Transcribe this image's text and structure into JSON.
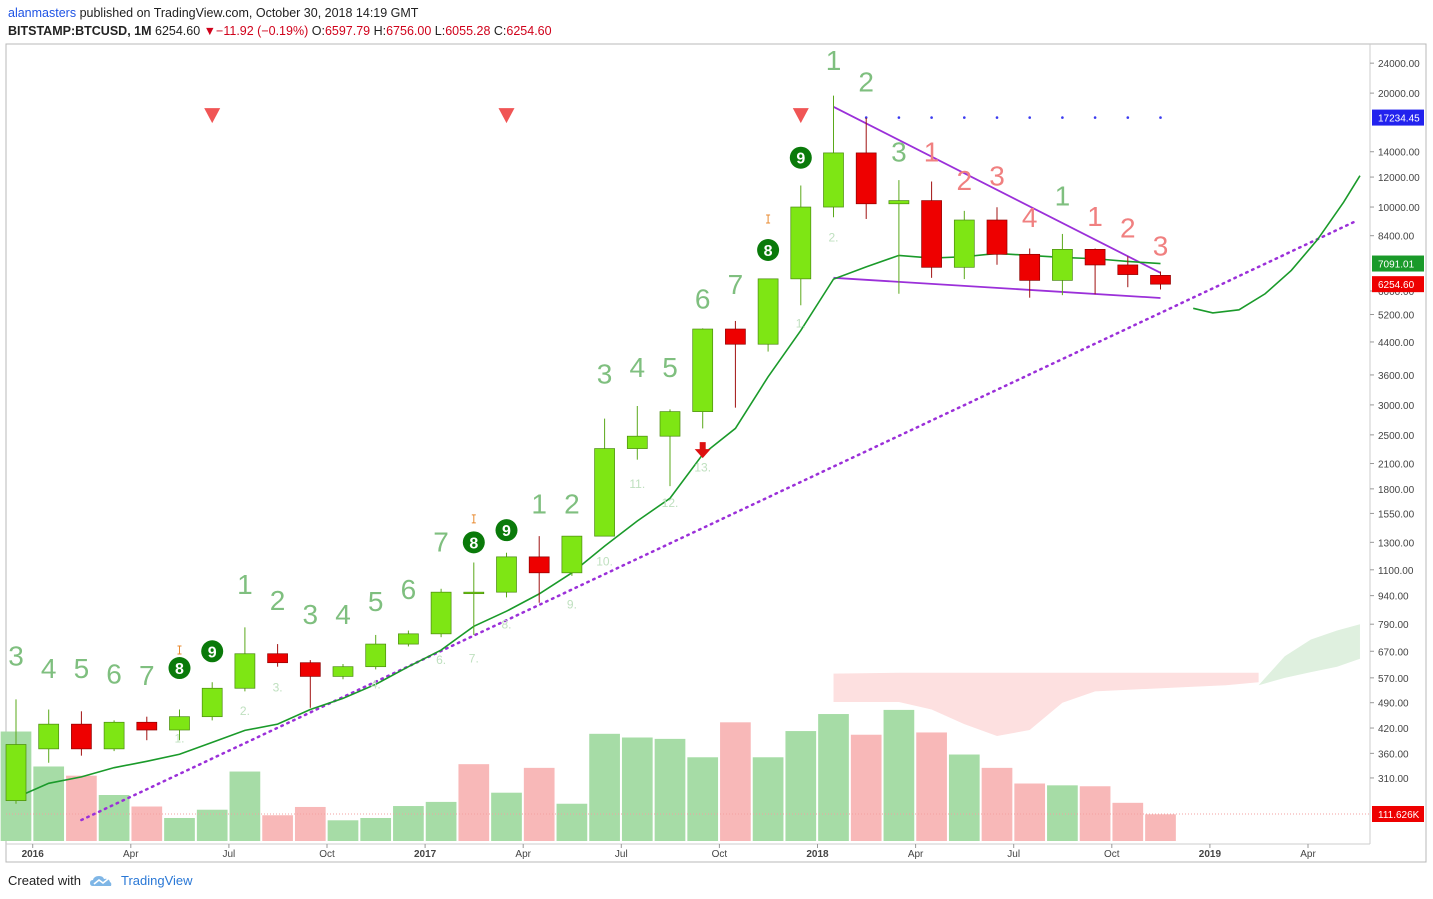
{
  "header": {
    "author": "alanmasters",
    "published_text": "published on TradingView.com, October 30, 2018 14:19 GMT",
    "symbol": "BITSTAMP:BTCUSD, 1M",
    "last": "6254.60",
    "change_arrow": "▼",
    "change": "−11.92 (−0.19%)",
    "o_label": "O:",
    "o": "6597.79",
    "h_label": "H:",
    "h": "6756.00",
    "l_label": "L:",
    "l": "6055.28",
    "c_label": "C:",
    "c": "6254.60"
  },
  "footer": {
    "created_with": "Created with",
    "brand": "TradingView",
    "logo_icon": "tradingview-cloud-icon"
  },
  "colors": {
    "up": "#7ee614",
    "down": "#ee0000",
    "ma": "#1a9a2a",
    "trend": "#9b30d9",
    "td_up": "#7fbf7f",
    "td_down": "#f08080",
    "badge": "#0a7a0a",
    "vol_up": "#a6dca6",
    "vol_down": "#f8b8b8",
    "sell_marker": "#f05555"
  },
  "chart_data": {
    "type": "candlestick",
    "interval": "1M",
    "scale": "log",
    "ylim": [
      240,
      26000
    ],
    "y_ticks": [
      "310.00",
      "360.00",
      "420.00",
      "490.00",
      "570.00",
      "670.00",
      "790.00",
      "940.00",
      "1100.00",
      "1300.00",
      "1550.00",
      "1800.00",
      "2100.00",
      "2500.00",
      "3000.00",
      "3600.00",
      "4400.00",
      "5200.00",
      "6000.00",
      "8400.00",
      "10000.00",
      "12000.00",
      "14000.00",
      "20000.00",
      "24000.00"
    ],
    "x_tick_labels": [
      {
        "label": "2016",
        "i": 1,
        "bold": true
      },
      {
        "label": "Apr",
        "i": 4
      },
      {
        "label": "Jul",
        "i": 7
      },
      {
        "label": "Oct",
        "i": 10
      },
      {
        "label": "2017",
        "i": 13,
        "bold": true
      },
      {
        "label": "Apr",
        "i": 16
      },
      {
        "label": "Jul",
        "i": 19
      },
      {
        "label": "Oct",
        "i": 22
      },
      {
        "label": "2018",
        "i": 25,
        "bold": true
      },
      {
        "label": "Apr",
        "i": 28
      },
      {
        "label": "Jul",
        "i": 31
      },
      {
        "label": "Oct",
        "i": 34
      },
      {
        "label": "2019",
        "i": 37,
        "bold": true
      },
      {
        "label": "Apr",
        "i": 40
      }
    ],
    "candles": [
      {
        "o": 270,
        "h": 500,
        "l": 265,
        "c": 380
      },
      {
        "o": 370,
        "h": 470,
        "l": 340,
        "c": 430
      },
      {
        "o": 430,
        "h": 465,
        "l": 355,
        "c": 370
      },
      {
        "o": 370,
        "h": 440,
        "l": 365,
        "c": 435
      },
      {
        "o": 435,
        "h": 450,
        "l": 390,
        "c": 415
      },
      {
        "o": 415,
        "h": 470,
        "l": 390,
        "c": 450
      },
      {
        "o": 450,
        "h": 555,
        "l": 440,
        "c": 535
      },
      {
        "o": 535,
        "h": 775,
        "l": 525,
        "c": 660
      },
      {
        "o": 660,
        "h": 700,
        "l": 610,
        "c": 625
      },
      {
        "o": 625,
        "h": 635,
        "l": 475,
        "c": 575
      },
      {
        "o": 575,
        "h": 620,
        "l": 565,
        "c": 610
      },
      {
        "o": 610,
        "h": 740,
        "l": 600,
        "c": 700
      },
      {
        "o": 700,
        "h": 760,
        "l": 690,
        "c": 745
      },
      {
        "o": 745,
        "h": 980,
        "l": 730,
        "c": 960
      },
      {
        "o": 960,
        "h": 1150,
        "l": 740,
        "c": 960
      },
      {
        "o": 960,
        "h": 1220,
        "l": 930,
        "c": 1190
      },
      {
        "o": 1190,
        "h": 1350,
        "l": 900,
        "c": 1080
      },
      {
        "o": 1080,
        "h": 1350,
        "l": 1060,
        "c": 1350
      },
      {
        "o": 1350,
        "h": 2760,
        "l": 1350,
        "c": 2300
      },
      {
        "o": 2300,
        "h": 2980,
        "l": 2150,
        "c": 2480
      },
      {
        "o": 2480,
        "h": 2920,
        "l": 1830,
        "c": 2880
      },
      {
        "o": 2880,
        "h": 4780,
        "l": 2600,
        "c": 4760
      },
      {
        "o": 4760,
        "h": 5000,
        "l": 2950,
        "c": 4340
      },
      {
        "o": 4340,
        "h": 6470,
        "l": 4150,
        "c": 6460
      },
      {
        "o": 6460,
        "h": 11400,
        "l": 5500,
        "c": 10000
      },
      {
        "o": 10000,
        "h": 19700,
        "l": 9400,
        "c": 13900
      },
      {
        "o": 13900,
        "h": 17200,
        "l": 9300,
        "c": 10200
      },
      {
        "o": 10200,
        "h": 11780,
        "l": 5900,
        "c": 10400
      },
      {
        "o": 10400,
        "h": 11680,
        "l": 6500,
        "c": 6930
      },
      {
        "o": 6930,
        "h": 9770,
        "l": 6450,
        "c": 9240
      },
      {
        "o": 9240,
        "h": 9990,
        "l": 7040,
        "c": 7500
      },
      {
        "o": 7500,
        "h": 7770,
        "l": 5760,
        "c": 6400
      },
      {
        "o": 6400,
        "h": 8490,
        "l": 5850,
        "c": 7730
      },
      {
        "o": 7730,
        "h": 7770,
        "l": 5880,
        "c": 7030
      },
      {
        "o": 7030,
        "h": 7410,
        "l": 6140,
        "c": 6630
      },
      {
        "o": 6597.79,
        "h": 6756,
        "l": 6055.28,
        "c": 6254.6
      }
    ],
    "volume": [
      {
        "v": 238,
        "up": true
      },
      {
        "v": 162,
        "up": true
      },
      {
        "v": 142,
        "up": false
      },
      {
        "v": 100,
        "up": true
      },
      {
        "v": 75,
        "up": false
      },
      {
        "v": 50,
        "up": true
      },
      {
        "v": 68,
        "up": true
      },
      {
        "v": 151,
        "up": true
      },
      {
        "v": 56,
        "up": false
      },
      {
        "v": 74,
        "up": false
      },
      {
        "v": 45,
        "up": true
      },
      {
        "v": 50,
        "up": true
      },
      {
        "v": 76,
        "up": true
      },
      {
        "v": 85,
        "up": true
      },
      {
        "v": 167,
        "up": false
      },
      {
        "v": 105,
        "up": true
      },
      {
        "v": 159,
        "up": false
      },
      {
        "v": 81,
        "up": true
      },
      {
        "v": 233,
        "up": true
      },
      {
        "v": 225,
        "up": true
      },
      {
        "v": 222,
        "up": true
      },
      {
        "v": 182,
        "up": true
      },
      {
        "v": 258,
        "up": false
      },
      {
        "v": 182,
        "up": true
      },
      {
        "v": 239,
        "up": true
      },
      {
        "v": 276,
        "up": true
      },
      {
        "v": 231,
        "up": false
      },
      {
        "v": 285,
        "up": true
      },
      {
        "v": 236,
        "up": false
      },
      {
        "v": 188,
        "up": true
      },
      {
        "v": 159,
        "up": false
      },
      {
        "v": 125,
        "up": false
      },
      {
        "v": 121,
        "up": true
      },
      {
        "v": 119,
        "up": false
      },
      {
        "v": 83,
        "up": false
      },
      {
        "v": 58,
        "up": false
      }
    ],
    "ma": [
      {
        "i": 0,
        "v": 275
      },
      {
        "i": 1,
        "v": 300
      },
      {
        "i": 2,
        "v": 312
      },
      {
        "i": 3,
        "v": 330
      },
      {
        "i": 4,
        "v": 343
      },
      {
        "i": 5,
        "v": 358
      },
      {
        "i": 6,
        "v": 385
      },
      {
        "i": 7,
        "v": 414
      },
      {
        "i": 8,
        "v": 430
      },
      {
        "i": 9,
        "v": 470
      },
      {
        "i": 10,
        "v": 503
      },
      {
        "i": 11,
        "v": 548
      },
      {
        "i": 12,
        "v": 610
      },
      {
        "i": 13,
        "v": 675
      },
      {
        "i": 14,
        "v": 780
      },
      {
        "i": 15,
        "v": 855
      },
      {
        "i": 16,
        "v": 950
      },
      {
        "i": 17,
        "v": 1080
      },
      {
        "i": 18,
        "v": 1270
      },
      {
        "i": 19,
        "v": 1480
      },
      {
        "i": 20,
        "v": 1700
      },
      {
        "i": 21,
        "v": 2220
      },
      {
        "i": 22,
        "v": 2600
      },
      {
        "i": 23,
        "v": 3560
      },
      {
        "i": 24,
        "v": 4720
      },
      {
        "i": 25,
        "v": 6450
      },
      {
        "i": 26,
        "v": 6950
      },
      {
        "i": 27,
        "v": 7450
      },
      {
        "i": 28,
        "v": 7330
      },
      {
        "i": 29,
        "v": 7390
      },
      {
        "i": 30,
        "v": 7540
      },
      {
        "i": 31,
        "v": 7450
      },
      {
        "i": 32,
        "v": 7360
      },
      {
        "i": 33,
        "v": 7300
      },
      {
        "i": 34,
        "v": 7180
      },
      {
        "i": 35,
        "v": 7091
      }
    ],
    "last_close": 6254.6,
    "ma_last": 7091.01,
    "volume_last_label": "111.626K",
    "high_marker_label": "17234.45",
    "high_marker_value": 17234.45,
    "price_labels": {
      "ma": "7091.01",
      "last": "6254.60",
      "high": "17234.45"
    },
    "trendlines": [
      {
        "name": "upper",
        "from": {
          "i": 25,
          "v": 18400
        },
        "to": {
          "i": 35,
          "v": 6700
        },
        "style": "solid"
      },
      {
        "name": "lower",
        "from": {
          "i": 25,
          "v": 6500
        },
        "to": {
          "i": 35,
          "v": 5750
        },
        "style": "solid"
      },
      {
        "name": "support",
        "from": {
          "i": 2,
          "v": 240
        },
        "to": {
          "i": 41,
          "v": 9200
        },
        "style": "dotted"
      }
    ],
    "projection": [
      {
        "i": 36.0,
        "v": 5400
      },
      {
        "i": 36.6,
        "v": 5250
      },
      {
        "i": 37.4,
        "v": 5350
      },
      {
        "i": 38.2,
        "v": 5900
      },
      {
        "i": 39.0,
        "v": 6800
      },
      {
        "i": 39.8,
        "v": 8200
      },
      {
        "i": 40.6,
        "v": 10300
      },
      {
        "i": 41.1,
        "v": 12100
      }
    ],
    "high_dots": [
      26,
      27,
      28,
      29,
      30,
      31,
      32,
      33,
      34,
      35
    ],
    "td_counts": [
      {
        "i": 0,
        "label": "3",
        "v": 615,
        "type": "up"
      },
      {
        "i": 1,
        "label": "4",
        "v": 570,
        "type": "up"
      },
      {
        "i": 2,
        "label": "5",
        "v": 570,
        "type": "up"
      },
      {
        "i": 3,
        "label": "6",
        "v": 550,
        "type": "up"
      },
      {
        "i": 4,
        "label": "7",
        "v": 545,
        "type": "up"
      },
      {
        "i": 7,
        "label": "1",
        "v": 950,
        "type": "up"
      },
      {
        "i": 8,
        "label": "2",
        "v": 860,
        "type": "up"
      },
      {
        "i": 9,
        "label": "3",
        "v": 790,
        "type": "up"
      },
      {
        "i": 10,
        "label": "4",
        "v": 790,
        "type": "up"
      },
      {
        "i": 11,
        "label": "5",
        "v": 855,
        "type": "up"
      },
      {
        "i": 12,
        "label": "6",
        "v": 920,
        "type": "up"
      },
      {
        "i": 13,
        "label": "7",
        "v": 1230,
        "type": "up"
      },
      {
        "i": 16,
        "label": "1",
        "v": 1550,
        "type": "up"
      },
      {
        "i": 17,
        "label": "2",
        "v": 1550,
        "type": "up"
      },
      {
        "i": 18,
        "label": "3",
        "v": 3420,
        "type": "up"
      },
      {
        "i": 19,
        "label": "4",
        "v": 3560,
        "type": "up"
      },
      {
        "i": 20,
        "label": "5",
        "v": 3560,
        "type": "up"
      },
      {
        "i": 21,
        "label": "6",
        "v": 5400,
        "type": "up"
      },
      {
        "i": 22,
        "label": "7",
        "v": 5900,
        "type": "up"
      },
      {
        "i": 25,
        "label": "1",
        "v": 23000,
        "type": "up"
      },
      {
        "i": 26,
        "label": "2",
        "v": 20200,
        "type": "up"
      },
      {
        "i": 27,
        "label": "3",
        "v": 13200,
        "type": "up"
      },
      {
        "i": 28,
        "label": "1",
        "v": 13200,
        "type": "down"
      },
      {
        "i": 29,
        "label": "2",
        "v": 11100,
        "type": "down"
      },
      {
        "i": 30,
        "label": "3",
        "v": 11400,
        "type": "down"
      },
      {
        "i": 31,
        "label": "4",
        "v": 8850,
        "type": "down"
      },
      {
        "i": 32,
        "label": "1",
        "v": 10100,
        "type": "up"
      },
      {
        "i": 33,
        "label": "1",
        "v": 8900,
        "type": "down"
      },
      {
        "i": 34,
        "label": "2",
        "v": 8300,
        "type": "down"
      },
      {
        "i": 35,
        "label": "3",
        "v": 7450,
        "type": "down"
      }
    ],
    "td_small": [
      {
        "i": 5,
        "label": "1.",
        "v": 385
      },
      {
        "i": 7,
        "label": "2.",
        "v": 455
      },
      {
        "i": 8,
        "label": "3.",
        "v": 525
      },
      {
        "i": 11,
        "label": "4.",
        "v": 535
      },
      {
        "i": 13,
        "label": "6.",
        "v": 620
      },
      {
        "i": 14,
        "label": "7.",
        "v": 625
      },
      {
        "i": 15,
        "label": "8.",
        "v": 770
      },
      {
        "i": 17,
        "label": "9.",
        "v": 870
      },
      {
        "i": 18,
        "label": "10.",
        "v": 1130
      },
      {
        "i": 19,
        "label": "11.",
        "v": 1810
      },
      {
        "i": 20,
        "label": "12.",
        "v": 1610
      },
      {
        "i": 21,
        "label": "13.",
        "v": 2000
      },
      {
        "i": 24,
        "label": "1.",
        "v": 4800
      },
      {
        "i": 25,
        "label": "2.",
        "v": 8100
      }
    ],
    "badges": [
      {
        "i": 5,
        "label": "8",
        "v": 605
      },
      {
        "i": 6,
        "label": "9",
        "v": 670
      },
      {
        "i": 14,
        "label": "8",
        "v": 1300
      },
      {
        "i": 15,
        "label": "9",
        "v": 1400
      },
      {
        "i": 23,
        "label": "8",
        "v": 7700
      },
      {
        "i": 24,
        "label": "9",
        "v": 13500
      }
    ],
    "small_marks": [
      {
        "i": 5,
        "v": 675
      },
      {
        "i": 14,
        "v": 1500
      },
      {
        "i": 23,
        "v": 9300
      }
    ],
    "sell_markers": [
      {
        "i": 6,
        "v": 17500
      },
      {
        "i": 15,
        "v": 17500
      },
      {
        "i": 24,
        "v": 17500
      }
    ],
    "down_arrows": [
      {
        "i": 21,
        "v": 2250
      }
    ],
    "cloud_red": [
      {
        "i": 25,
        "top": 585,
        "bot": 492
      },
      {
        "i": 27,
        "top": 588,
        "bot": 492
      },
      {
        "i": 28,
        "top": 588,
        "bot": 470
      },
      {
        "i": 29,
        "top": 588,
        "bot": 430
      },
      {
        "i": 30,
        "top": 588,
        "bot": 400
      },
      {
        "i": 31,
        "top": 588,
        "bot": 415
      },
      {
        "i": 32,
        "top": 588,
        "bot": 490
      },
      {
        "i": 33,
        "top": 588,
        "bot": 525
      },
      {
        "i": 36,
        "top": 588,
        "bot": 540
      },
      {
        "i": 37,
        "top": 588,
        "bot": 545
      },
      {
        "i": 38,
        "top": 588,
        "bot": 555
      }
    ],
    "cloud_green": [
      {
        "i": 38.0,
        "top": 545,
        "bot": 545
      },
      {
        "i": 38.8,
        "top": 650,
        "bot": 570
      },
      {
        "i": 39.6,
        "top": 720,
        "bot": 590
      },
      {
        "i": 40.4,
        "top": 760,
        "bot": 610
      },
      {
        "i": 41.1,
        "top": 790,
        "bot": 640
      }
    ]
  }
}
